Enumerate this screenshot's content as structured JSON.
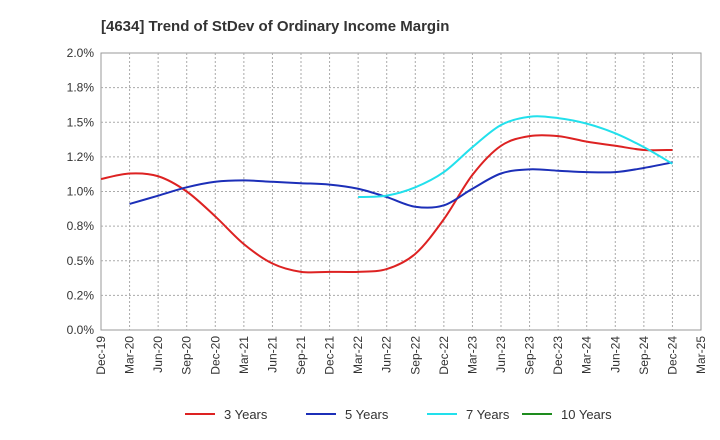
{
  "chart_data": {
    "type": "line",
    "title": "[4634]  Trend of StDev of Ordinary Income Margin",
    "xlabel": "",
    "ylabel": "",
    "ylim": [
      0,
      2.0
    ],
    "yticks": [
      "0.0%",
      "0.2%",
      "0.5%",
      "0.8%",
      "1.0%",
      "1.2%",
      "1.5%",
      "1.8%",
      "2.0%"
    ],
    "ytick_values": [
      0,
      0.25,
      0.5,
      0.75,
      1.0,
      1.25,
      1.5,
      1.75,
      2.0
    ],
    "x": [
      "Dec-19",
      "Mar-20",
      "Jun-20",
      "Sep-20",
      "Dec-20",
      "Mar-21",
      "Jun-21",
      "Sep-21",
      "Dec-21",
      "Mar-22",
      "Jun-22",
      "Sep-22",
      "Dec-22",
      "Mar-23",
      "Jun-23",
      "Sep-23",
      "Dec-23",
      "Mar-24",
      "Jun-24",
      "Sep-24",
      "Dec-24",
      "Mar-25"
    ],
    "grid": true,
    "legend_position": "bottom",
    "series": [
      {
        "name": "3 Years",
        "color": "#dd2222",
        "values": [
          1.09,
          1.13,
          1.11,
          1.0,
          0.82,
          0.62,
          0.48,
          0.42,
          0.42,
          0.42,
          0.44,
          0.55,
          0.8,
          1.12,
          1.33,
          1.4,
          1.4,
          1.36,
          1.33,
          1.3,
          1.3,
          null
        ]
      },
      {
        "name": "5 Years",
        "color": "#1c2fb8",
        "values": [
          null,
          0.91,
          0.97,
          1.03,
          1.07,
          1.08,
          1.07,
          1.06,
          1.05,
          1.02,
          0.96,
          0.89,
          0.9,
          1.02,
          1.13,
          1.16,
          1.15,
          1.14,
          1.14,
          1.17,
          1.21,
          null
        ]
      },
      {
        "name": "7 Years",
        "color": "#22e0ec",
        "values": [
          null,
          null,
          null,
          null,
          null,
          null,
          null,
          null,
          null,
          0.96,
          0.97,
          1.03,
          1.14,
          1.32,
          1.48,
          1.54,
          1.53,
          1.49,
          1.42,
          1.32,
          1.2,
          null
        ]
      },
      {
        "name": "10 Years",
        "color": "#1e8c1e",
        "values": [
          null,
          null,
          null,
          null,
          null,
          null,
          null,
          null,
          null,
          null,
          null,
          null,
          null,
          null,
          null,
          null,
          null,
          null,
          null,
          null,
          null,
          null
        ]
      }
    ]
  }
}
